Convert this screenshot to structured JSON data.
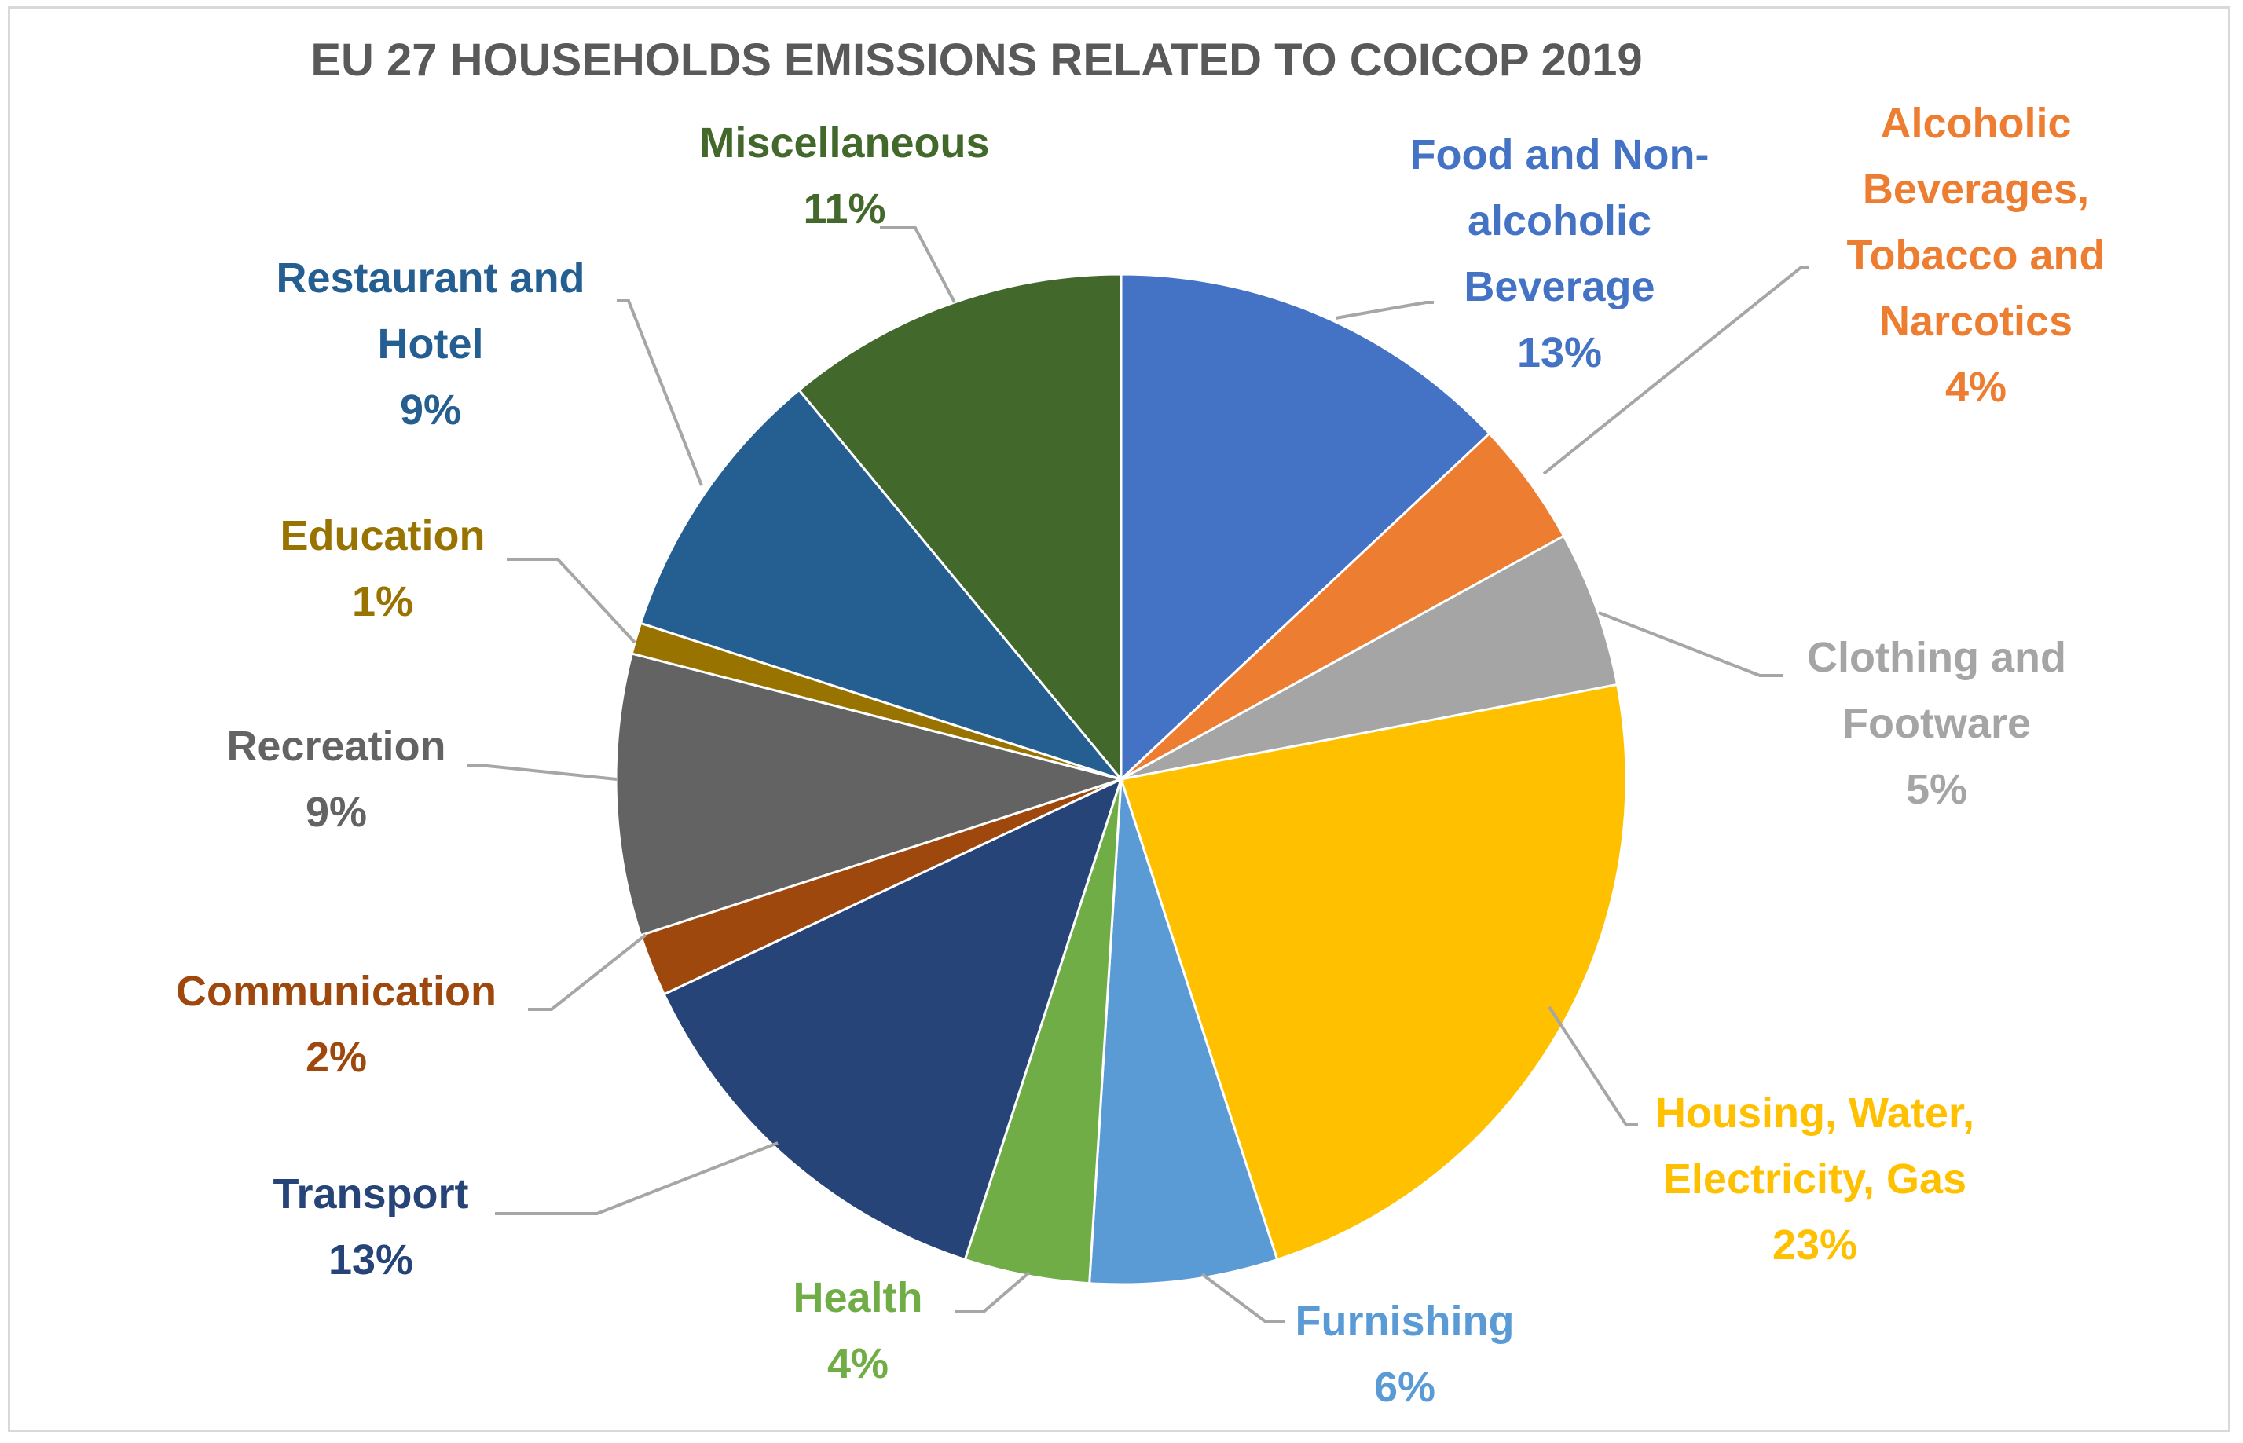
{
  "chart_data": {
    "type": "pie",
    "title": "EU 27 HOUSEHOLDS EMISSIONS RELATED TO COICOP 2019",
    "slices": [
      {
        "key": "food",
        "label": "Food and Non-alcoholic Beverage",
        "label_lines": [
          "Food and Non-",
          "alcoholic",
          "Beverage"
        ],
        "value": 13,
        "value_label": "13%",
        "color": "#4472c4"
      },
      {
        "key": "alcohol",
        "label": "Alcoholic Beverages, Tobacco and Narcotics",
        "label_lines": [
          "Alcoholic",
          "Beverages,",
          "Tobacco and",
          "Narcotics"
        ],
        "value": 4,
        "value_label": "4%",
        "color": "#ed7d31"
      },
      {
        "key": "clothing",
        "label": "Clothing and Footware",
        "label_lines": [
          "Clothing and",
          "Footware"
        ],
        "value": 5,
        "value_label": "5%",
        "color": "#a5a5a5"
      },
      {
        "key": "housing",
        "label": "Housing, Water, Electricity, Gas",
        "label_lines": [
          "Housing, Water,",
          "Electricity, Gas"
        ],
        "value": 23,
        "value_label": "23%",
        "color": "#ffc000"
      },
      {
        "key": "furnishing",
        "label": "Furnishing",
        "label_lines": [
          "Furnishing"
        ],
        "value": 6,
        "value_label": "6%",
        "color": "#5b9bd5"
      },
      {
        "key": "health",
        "label": "Health",
        "label_lines": [
          "Health"
        ],
        "value": 4,
        "value_label": "4%",
        "color": "#70ad47"
      },
      {
        "key": "transport",
        "label": "Transport",
        "label_lines": [
          "Transport"
        ],
        "value": 13,
        "value_label": "13%",
        "color": "#264478"
      },
      {
        "key": "communication",
        "label": "Communication",
        "label_lines": [
          "Communication"
        ],
        "value": 2,
        "value_label": "2%",
        "color": "#9e480e"
      },
      {
        "key": "recreation",
        "label": "Recreation",
        "label_lines": [
          "Recreation"
        ],
        "value": 9,
        "value_label": "9%",
        "color": "#636363"
      },
      {
        "key": "education",
        "label": "Education",
        "label_lines": [
          "Education"
        ],
        "value": 1,
        "value_label": "1%",
        "color": "#997300"
      },
      {
        "key": "restaurant",
        "label": "Restaurant and Hotel",
        "label_lines": [
          "Restaurant and",
          "Hotel"
        ],
        "value": 9,
        "value_label": "9%",
        "color": "#255e91"
      },
      {
        "key": "misc",
        "label": "Miscellaneous",
        "label_lines": [
          "Miscellaneous"
        ],
        "value": 11,
        "value_label": "11%",
        "color": "#43682b"
      }
    ],
    "label_colors": {
      "food": "#4472c4",
      "alcohol": "#ed7d31",
      "clothing": "#a5a5a5",
      "housing": "#ffc000",
      "furnishing": "#5b9bd5",
      "health": "#70ad47",
      "transport": "#264478",
      "communication": "#9e480e",
      "recreation": "#636363",
      "education": "#997300",
      "restaurant": "#255e91",
      "misc": "#43682b"
    },
    "start_angle": "12 o'clock",
    "direction": "clockwise",
    "legend": "none",
    "data_labels": "outside with leader lines"
  }
}
